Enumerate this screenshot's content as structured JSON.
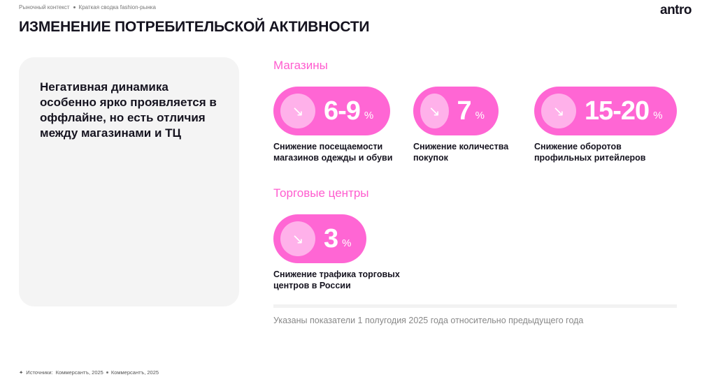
{
  "breadcrumb": [
    "Рыночный контекст",
    "Краткая сводка fashion-рынка"
  ],
  "logo": "antro",
  "title": "ИЗМЕНЕНИЕ ПОТРЕБИТЕЛЬСКОЙ АКТИВНОСТИ",
  "summary": "Негативная динамика особенно ярко проявляется в оффлайне, но есть отличия между магазинами и ТЦ",
  "stores": {
    "heading": "Магазины",
    "metrics": [
      {
        "value": "6-9",
        "unit": "%",
        "desc": "Снижение посещаемости магазинов одежды и обуви",
        "icon": "arrow-down-right-icon"
      },
      {
        "value": "7",
        "unit": "%",
        "desc": "Снижение количества покупок",
        "icon": "arrow-down-right-icon"
      },
      {
        "value": "15-20",
        "unit": "%",
        "desc": "Снижение оборотов профильных ритейлеров",
        "icon": "arrow-down-right-icon"
      }
    ]
  },
  "malls": {
    "heading": "Торговые центры",
    "metrics": [
      {
        "value": "3",
        "unit": "%",
        "desc": "Снижение трафика торговых центров в России",
        "icon": "arrow-down-right-icon"
      }
    ]
  },
  "note": "Указаны показатели 1 полугодия 2025 года относительно предыдущего года",
  "sources": {
    "label": "Источники:",
    "items": [
      "Коммерсантъ, 2025",
      "Коммерсантъ, 2025"
    ]
  },
  "colors": {
    "accent": "#ff66d4",
    "accent_light": "#ffb1ea",
    "heading_pink": "#ff5ccf"
  }
}
